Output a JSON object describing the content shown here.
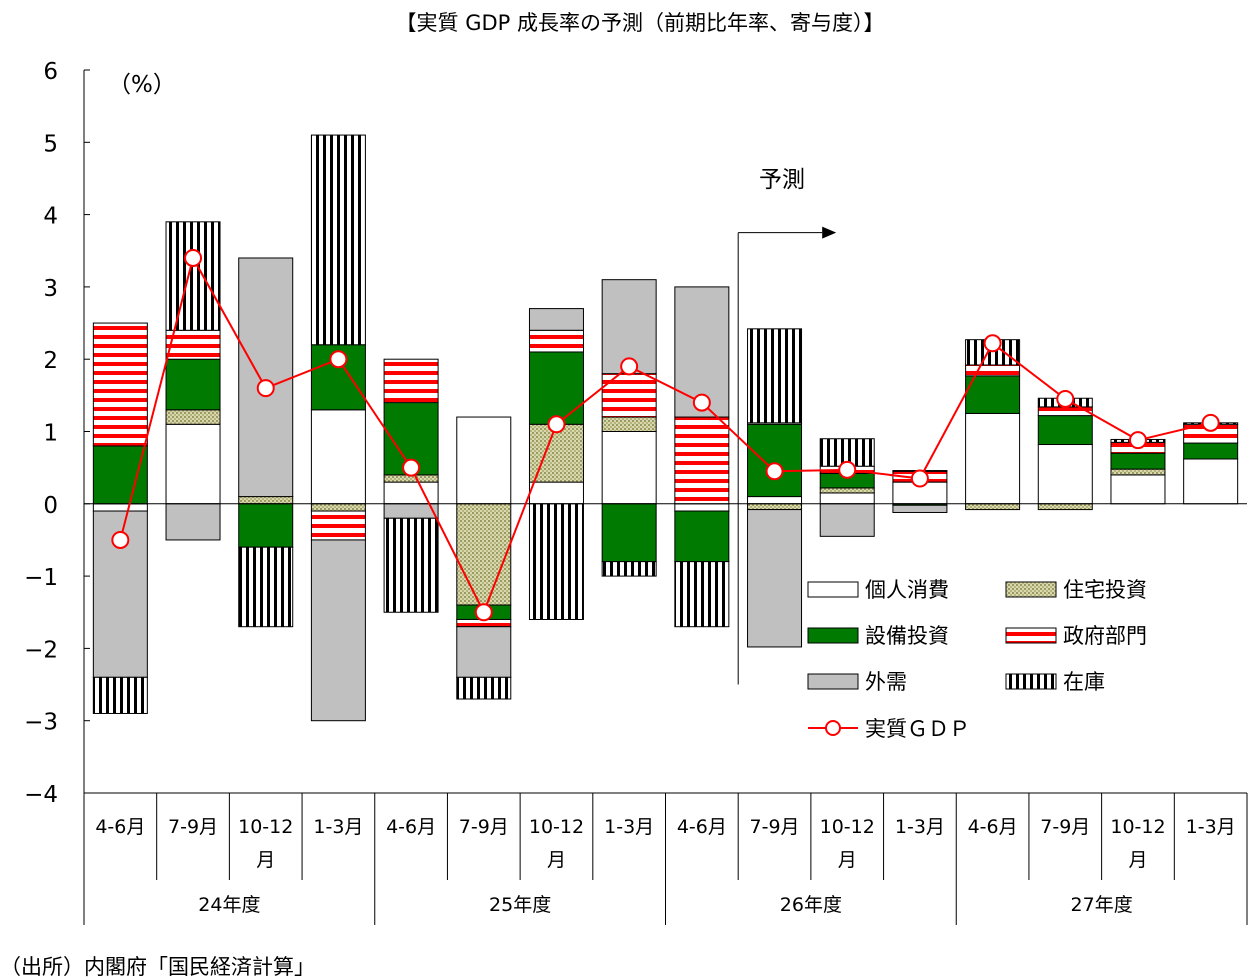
{
  "chart_data": {
    "type": "bar",
    "subtype": "stacked-bar-with-line",
    "title": "【実質 GDP 成長率の予測（前期比年率、寄与度）】",
    "unit_label": "（%）",
    "ylim": [
      -4,
      6
    ],
    "yticks": [
      "6",
      "5",
      "4",
      "3",
      "2",
      "1",
      "0",
      "−1",
      "−2",
      "−3",
      "−4"
    ],
    "categories": [
      [
        "4-6月"
      ],
      [
        "7-9月"
      ],
      [
        "10-12",
        "月"
      ],
      [
        "1-3月"
      ],
      [
        "4-6月"
      ],
      [
        "7-9月"
      ],
      [
        "10-12",
        "月"
      ],
      [
        "1-3月"
      ],
      [
        "4-6月"
      ],
      [
        "7-9月"
      ],
      [
        "10-12",
        "月"
      ],
      [
        "1-3月"
      ],
      [
        "4-6月"
      ],
      [
        "7-9月"
      ],
      [
        "10-12",
        "月"
      ],
      [
        "1-3月"
      ]
    ],
    "fiscal_years": [
      "24年度",
      "25年度",
      "26年度",
      "27年度"
    ],
    "forecast_label": "予測",
    "forecast_start_index": 9,
    "series": [
      {
        "name": "個人消費",
        "pattern": "white",
        "values": [
          -0.1,
          1.1,
          0.0,
          1.3,
          0.3,
          1.2,
          0.3,
          1.0,
          -0.1,
          0.1,
          0.15,
          0.3,
          1.25,
          0.82,
          0.4,
          0.62
        ]
      },
      {
        "name": "住宅投資",
        "pattern": "dots",
        "values": [
          0.0,
          0.2,
          0.1,
          -0.1,
          0.1,
          -1.4,
          0.8,
          0.2,
          0.0,
          -0.08,
          0.07,
          0.0,
          -0.08,
          -0.08,
          0.08,
          0.0
        ]
      },
      {
        "name": "設備投資",
        "pattern": "green",
        "values": [
          0.8,
          0.7,
          -0.6,
          0.9,
          1.0,
          -0.2,
          1.0,
          -0.8,
          -0.7,
          1.0,
          0.2,
          -0.02,
          0.52,
          0.4,
          0.22,
          0.22
        ]
      },
      {
        "name": "政府部門",
        "pattern": "red-stripes",
        "values": [
          1.7,
          0.4,
          0.0,
          -0.4,
          0.6,
          -0.1,
          0.3,
          0.6,
          1.2,
          0.02,
          0.1,
          0.15,
          0.15,
          0.12,
          0.15,
          0.26
        ]
      },
      {
        "name": "外需",
        "pattern": "gray",
        "values": [
          -2.3,
          -0.5,
          3.3,
          -2.5,
          -0.2,
          -0.7,
          0.3,
          1.3,
          1.8,
          -1.9,
          -0.45,
          -0.1,
          0.0,
          0.0,
          0.0,
          0.0
        ]
      },
      {
        "name": "在庫",
        "pattern": "vstripes",
        "values": [
          -0.5,
          1.5,
          -1.1,
          2.9,
          -1.3,
          -0.3,
          -1.6,
          -0.2,
          -0.9,
          1.3,
          0.38,
          0.01,
          0.35,
          0.12,
          0.04,
          0.02
        ]
      }
    ],
    "line": {
      "name": "実質ＧＤＰ",
      "values": [
        -0.5,
        3.4,
        1.6,
        2.0,
        0.5,
        -1.5,
        1.1,
        1.9,
        1.4,
        0.45,
        0.47,
        0.35,
        2.22,
        1.45,
        0.88,
        1.12
      ]
    },
    "colors": {
      "green": "#007a00",
      "red": "#ff0000",
      "gray": "#c0c0c0",
      "olive": "#c8c896",
      "olive_dot": "#8c8c5a"
    },
    "legend_position": "inside-lower-right"
  },
  "source": "（出所）内閣府「国民経済計算」"
}
